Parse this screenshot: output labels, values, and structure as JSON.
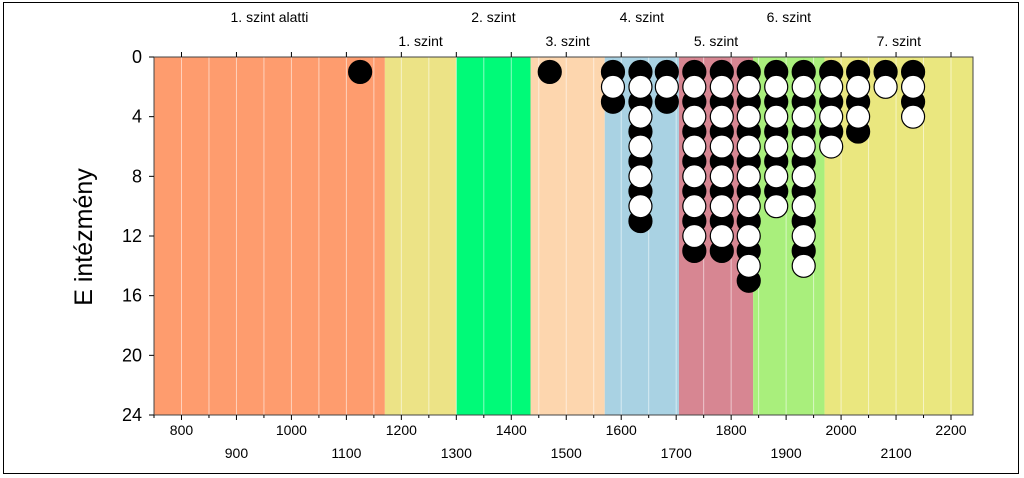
{
  "chart_data": {
    "type": "scatter",
    "title": "",
    "xlabel": "",
    "ylabel": "E intézmény",
    "xlim": [
      750,
      2240
    ],
    "ylim": [
      24,
      0
    ],
    "y_ticks": [
      "0",
      "4",
      "8",
      "12",
      "16",
      "20",
      "24"
    ],
    "x_ticks_top_row": [
      "800",
      "1000",
      "1200",
      "1400",
      "1600",
      "1800",
      "2000",
      "2200"
    ],
    "x_ticks_bottom_row": [
      "900",
      "1100",
      "1300",
      "1500",
      "1700",
      "1900",
      "2100"
    ],
    "grid": "vertical minor lines every 50",
    "bands": [
      {
        "name": "1. szint alatti",
        "from": 750,
        "to": 1170,
        "color": "#fe9c6e",
        "label_row": "top"
      },
      {
        "name": "1. szint",
        "from": 1170,
        "to": 1300,
        "color": "#ece386",
        "label_row": "bottom"
      },
      {
        "name": "2. szint",
        "from": 1300,
        "to": 1435,
        "color": "#00fa78",
        "label_row": "top"
      },
      {
        "name": "3. szint",
        "from": 1435,
        "to": 1570,
        "color": "#fdd6ae",
        "label_row": "bottom"
      },
      {
        "name": "4. szint",
        "from": 1570,
        "to": 1705,
        "color": "#a9d2e3",
        "label_row": "top"
      },
      {
        "name": "5. szint",
        "from": 1705,
        "to": 1840,
        "color": "#d78692",
        "label_row": "bottom"
      },
      {
        "name": "6. szint",
        "from": 1840,
        "to": 1970,
        "color": "#a9ef7c",
        "label_row": "top"
      },
      {
        "name": "7. szint",
        "from": 1970,
        "to": 2240,
        "color": "#eae77f",
        "label_row": "bottom"
      }
    ],
    "series": [
      {
        "marker": "filled",
        "color": "#000000",
        "points": [
          {
            "x": 1125,
            "y": 1
          },
          {
            "x": 1470,
            "y": 1
          },
          {
            "x": 1585,
            "y": 1
          },
          {
            "x": 1585,
            "y": 3
          },
          {
            "x": 1635,
            "y": 1
          },
          {
            "x": 1635,
            "y": 3
          },
          {
            "x": 1635,
            "y": 5
          },
          {
            "x": 1635,
            "y": 7
          },
          {
            "x": 1635,
            "y": 9
          },
          {
            "x": 1635,
            "y": 11
          },
          {
            "x": 1683,
            "y": 1
          },
          {
            "x": 1683,
            "y": 3
          },
          {
            "x": 1733,
            "y": 1
          },
          {
            "x": 1733,
            "y": 3
          },
          {
            "x": 1733,
            "y": 5
          },
          {
            "x": 1733,
            "y": 7
          },
          {
            "x": 1733,
            "y": 9
          },
          {
            "x": 1733,
            "y": 11
          },
          {
            "x": 1733,
            "y": 13
          },
          {
            "x": 1783,
            "y": 1
          },
          {
            "x": 1783,
            "y": 3
          },
          {
            "x": 1783,
            "y": 5
          },
          {
            "x": 1783,
            "y": 7
          },
          {
            "x": 1783,
            "y": 9
          },
          {
            "x": 1783,
            "y": 11
          },
          {
            "x": 1783,
            "y": 13
          },
          {
            "x": 1832,
            "y": 1
          },
          {
            "x": 1832,
            "y": 3
          },
          {
            "x": 1832,
            "y": 5
          },
          {
            "x": 1832,
            "y": 7
          },
          {
            "x": 1832,
            "y": 9
          },
          {
            "x": 1832,
            "y": 11
          },
          {
            "x": 1832,
            "y": 13
          },
          {
            "x": 1832,
            "y": 15
          },
          {
            "x": 1882,
            "y": 1
          },
          {
            "x": 1882,
            "y": 3
          },
          {
            "x": 1882,
            "y": 5
          },
          {
            "x": 1882,
            "y": 7
          },
          {
            "x": 1882,
            "y": 9
          },
          {
            "x": 1932,
            "y": 1
          },
          {
            "x": 1932,
            "y": 3
          },
          {
            "x": 1932,
            "y": 5
          },
          {
            "x": 1932,
            "y": 7
          },
          {
            "x": 1932,
            "y": 9
          },
          {
            "x": 1932,
            "y": 11
          },
          {
            "x": 1932,
            "y": 13
          },
          {
            "x": 1982,
            "y": 1
          },
          {
            "x": 1982,
            "y": 3
          },
          {
            "x": 1982,
            "y": 5
          },
          {
            "x": 2031,
            "y": 1
          },
          {
            "x": 2031,
            "y": 3
          },
          {
            "x": 2031,
            "y": 5
          },
          {
            "x": 2081,
            "y": 1
          },
          {
            "x": 2131,
            "y": 1
          },
          {
            "x": 2131,
            "y": 3
          }
        ]
      },
      {
        "marker": "open",
        "color": "#ffffff",
        "points": [
          {
            "x": 1585,
            "y": 2
          },
          {
            "x": 1635,
            "y": 2
          },
          {
            "x": 1635,
            "y": 4
          },
          {
            "x": 1635,
            "y": 6
          },
          {
            "x": 1635,
            "y": 8
          },
          {
            "x": 1635,
            "y": 10
          },
          {
            "x": 1683,
            "y": 2
          },
          {
            "x": 1733,
            "y": 2
          },
          {
            "x": 1733,
            "y": 4
          },
          {
            "x": 1733,
            "y": 6
          },
          {
            "x": 1733,
            "y": 8
          },
          {
            "x": 1733,
            "y": 10
          },
          {
            "x": 1733,
            "y": 12
          },
          {
            "x": 1783,
            "y": 2
          },
          {
            "x": 1783,
            "y": 4
          },
          {
            "x": 1783,
            "y": 6
          },
          {
            "x": 1783,
            "y": 8
          },
          {
            "x": 1783,
            "y": 10
          },
          {
            "x": 1783,
            "y": 12
          },
          {
            "x": 1832,
            "y": 2
          },
          {
            "x": 1832,
            "y": 4
          },
          {
            "x": 1832,
            "y": 6
          },
          {
            "x": 1832,
            "y": 8
          },
          {
            "x": 1832,
            "y": 10
          },
          {
            "x": 1832,
            "y": 12
          },
          {
            "x": 1832,
            "y": 14
          },
          {
            "x": 1882,
            "y": 2
          },
          {
            "x": 1882,
            "y": 4
          },
          {
            "x": 1882,
            "y": 6
          },
          {
            "x": 1882,
            "y": 8
          },
          {
            "x": 1882,
            "y": 10
          },
          {
            "x": 1932,
            "y": 2
          },
          {
            "x": 1932,
            "y": 4
          },
          {
            "x": 1932,
            "y": 6
          },
          {
            "x": 1932,
            "y": 8
          },
          {
            "x": 1932,
            "y": 10
          },
          {
            "x": 1932,
            "y": 12
          },
          {
            "x": 1932,
            "y": 14
          },
          {
            "x": 1982,
            "y": 2
          },
          {
            "x": 1982,
            "y": 4
          },
          {
            "x": 1982,
            "y": 6
          },
          {
            "x": 2031,
            "y": 2
          },
          {
            "x": 2031,
            "y": 4
          },
          {
            "x": 2081,
            "y": 2
          },
          {
            "x": 2131,
            "y": 2
          },
          {
            "x": 2131,
            "y": 4
          }
        ]
      }
    ]
  }
}
